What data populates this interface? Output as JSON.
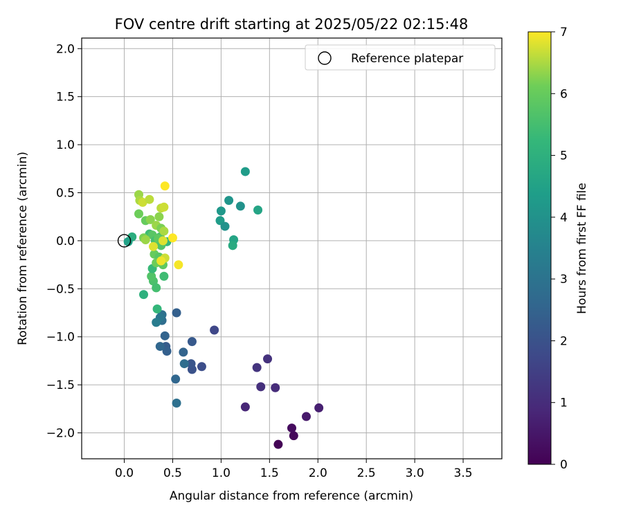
{
  "chart_data": {
    "type": "scatter",
    "title": "FOV centre drift starting at 2025/05/22 02:15:48",
    "xlabel": "Angular distance from reference (arcmin)",
    "ylabel": "Rotation from reference (arcmin)",
    "xlim": [
      -0.44,
      3.9
    ],
    "ylim": [
      -2.27,
      2.11
    ],
    "xticks": [
      0.0,
      0.5,
      1.0,
      1.5,
      2.0,
      2.5,
      3.0,
      3.5
    ],
    "yticks": [
      -2.0,
      -1.5,
      -1.0,
      -0.5,
      0.0,
      0.5,
      1.0,
      1.5,
      2.0
    ],
    "xtick_labels": [
      "0.0",
      "0.5",
      "1.0",
      "1.5",
      "2.0",
      "2.5",
      "3.0",
      "3.5"
    ],
    "ytick_labels": [
      "−2.0",
      "−1.5",
      "−1.0",
      "−0.5",
      "0.0",
      "0.5",
      "1.0",
      "1.5",
      "2.0"
    ],
    "grid": true,
    "legend": {
      "placement": "top-right",
      "entries": [
        "Reference platepar"
      ]
    },
    "reference_point": {
      "x": 0.0,
      "y": 0.0
    },
    "colorbar": {
      "label": "Hours from first FF file",
      "range": [
        0,
        7
      ],
      "ticks": [
        0,
        1,
        2,
        3,
        4,
        5,
        6,
        7
      ],
      "tick_labels": [
        "0",
        "1",
        "2",
        "3",
        "4",
        "5",
        "6",
        "7"
      ],
      "colormap": "viridis"
    },
    "points": [
      {
        "x": 1.59,
        "y": -2.12,
        "c": 0.05
      },
      {
        "x": 1.75,
        "y": -2.03,
        "c": 0.15
      },
      {
        "x": 1.73,
        "y": -1.95,
        "c": 0.25
      },
      {
        "x": 1.88,
        "y": -1.83,
        "c": 0.55
      },
      {
        "x": 2.01,
        "y": -1.74,
        "c": 0.7
      },
      {
        "x": 1.25,
        "y": -1.73,
        "c": 0.85
      },
      {
        "x": 1.56,
        "y": -1.53,
        "c": 1.0
      },
      {
        "x": 1.41,
        "y": -1.52,
        "c": 1.1
      },
      {
        "x": 1.37,
        "y": -1.32,
        "c": 1.2
      },
      {
        "x": 1.48,
        "y": -1.23,
        "c": 1.15
      },
      {
        "x": 0.93,
        "y": -0.93,
        "c": 1.7
      },
      {
        "x": 0.8,
        "y": -1.31,
        "c": 1.9
      },
      {
        "x": 0.7,
        "y": -1.34,
        "c": 2.0
      },
      {
        "x": 0.69,
        "y": -1.28,
        "c": 2.1
      },
      {
        "x": 0.7,
        "y": -1.05,
        "c": 2.2
      },
      {
        "x": 0.61,
        "y": -1.16,
        "c": 2.5
      },
      {
        "x": 0.62,
        "y": -1.28,
        "c": 2.8
      },
      {
        "x": 0.53,
        "y": -1.44,
        "c": 2.6
      },
      {
        "x": 0.54,
        "y": -1.69,
        "c": 2.9
      },
      {
        "x": 0.54,
        "y": -0.75,
        "c": 2.4
      },
      {
        "x": 0.43,
        "y": -1.1,
        "c": 2.3
      },
      {
        "x": 0.44,
        "y": -1.15,
        "c": 2.4
      },
      {
        "x": 0.37,
        "y": -1.1,
        "c": 2.6
      },
      {
        "x": 0.42,
        "y": -0.99,
        "c": 2.5
      },
      {
        "x": 0.39,
        "y": -0.83,
        "c": 2.8
      },
      {
        "x": 0.39,
        "y": -0.77,
        "c": 2.9
      },
      {
        "x": 0.37,
        "y": -0.8,
        "c": 3.1
      },
      {
        "x": 0.33,
        "y": -0.85,
        "c": 3.3
      },
      {
        "x": 1.25,
        "y": 0.72,
        "c": 4.3
      },
      {
        "x": 1.08,
        "y": 0.42,
        "c": 4.1
      },
      {
        "x": 1.2,
        "y": 0.36,
        "c": 4.0
      },
      {
        "x": 1.38,
        "y": 0.32,
        "c": 4.6
      },
      {
        "x": 1.0,
        "y": 0.31,
        "c": 4.2
      },
      {
        "x": 0.99,
        "y": 0.21,
        "c": 4.3
      },
      {
        "x": 1.04,
        "y": 0.15,
        "c": 4.0
      },
      {
        "x": 1.13,
        "y": 0.01,
        "c": 4.6
      },
      {
        "x": 1.12,
        "y": -0.05,
        "c": 4.8
      },
      {
        "x": 0.08,
        "y": 0.04,
        "c": 4.9
      },
      {
        "x": 0.04,
        "y": -0.01,
        "c": 4.5
      },
      {
        "x": 0.2,
        "y": -0.56,
        "c": 5.0
      },
      {
        "x": 0.34,
        "y": -0.71,
        "c": 5.2
      },
      {
        "x": 0.41,
        "y": -0.37,
        "c": 5.4
      },
      {
        "x": 0.3,
        "y": -0.42,
        "c": 5.6
      },
      {
        "x": 0.33,
        "y": -0.49,
        "c": 5.5
      },
      {
        "x": 0.28,
        "y": -0.37,
        "c": 5.7
      },
      {
        "x": 0.29,
        "y": -0.29,
        "c": 5.3
      },
      {
        "x": 0.44,
        "y": -0.01,
        "c": 5.2
      },
      {
        "x": 0.37,
        "y": 0.04,
        "c": 5.6
      },
      {
        "x": 0.26,
        "y": 0.07,
        "c": 5.4
      },
      {
        "x": 0.29,
        "y": 0.06,
        "c": 5.8
      },
      {
        "x": 0.32,
        "y": 0.0,
        "c": 5.5
      },
      {
        "x": 0.35,
        "y": 0.02,
        "c": 5.9
      },
      {
        "x": 0.38,
        "y": -0.05,
        "c": 5.7
      },
      {
        "x": 0.31,
        "y": -0.14,
        "c": 6.0
      },
      {
        "x": 0.36,
        "y": -0.17,
        "c": 5.8
      },
      {
        "x": 0.33,
        "y": -0.23,
        "c": 6.1
      },
      {
        "x": 0.4,
        "y": -0.25,
        "c": 5.9
      },
      {
        "x": 0.2,
        "y": 0.03,
        "c": 6.2
      },
      {
        "x": 0.22,
        "y": 0.21,
        "c": 6.0
      },
      {
        "x": 0.27,
        "y": 0.22,
        "c": 6.3
      },
      {
        "x": 0.15,
        "y": 0.28,
        "c": 6.1
      },
      {
        "x": 0.33,
        "y": 0.16,
        "c": 6.4
      },
      {
        "x": 0.38,
        "y": 0.13,
        "c": 6.2
      },
      {
        "x": 0.41,
        "y": 0.1,
        "c": 6.5
      },
      {
        "x": 0.36,
        "y": 0.25,
        "c": 6.3
      },
      {
        "x": 0.38,
        "y": 0.34,
        "c": 6.6
      },
      {
        "x": 0.41,
        "y": 0.35,
        "c": 6.7
      },
      {
        "x": 0.15,
        "y": 0.48,
        "c": 6.4
      },
      {
        "x": 0.16,
        "y": 0.42,
        "c": 6.5
      },
      {
        "x": 0.19,
        "y": 0.4,
        "c": 6.7
      },
      {
        "x": 0.26,
        "y": 0.43,
        "c": 6.6
      },
      {
        "x": 0.22,
        "y": 0.01,
        "c": 6.4
      },
      {
        "x": 0.3,
        "y": -0.06,
        "c": 6.8
      },
      {
        "x": 0.42,
        "y": -0.18,
        "c": 6.7
      },
      {
        "x": 0.38,
        "y": -0.21,
        "c": 6.9
      },
      {
        "x": 0.4,
        "y": 0.0,
        "c": 6.8
      },
      {
        "x": 0.5,
        "y": 0.03,
        "c": 7.0
      },
      {
        "x": 0.56,
        "y": -0.25,
        "c": 6.95
      },
      {
        "x": 0.42,
        "y": 0.57,
        "c": 7.0
      }
    ]
  }
}
